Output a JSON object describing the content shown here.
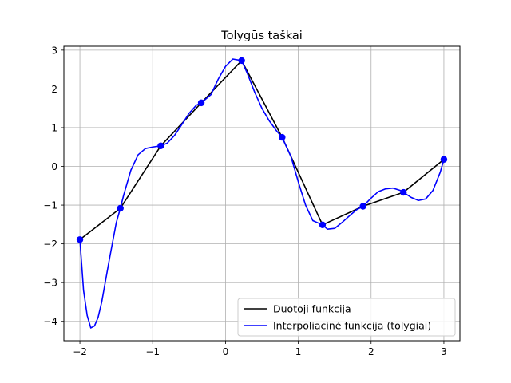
{
  "chart_data": {
    "type": "line",
    "title": "Tolygūs taškai",
    "xlabel": "",
    "ylabel": "",
    "xlim": [
      -2.22,
      3.22
    ],
    "ylim": [
      -4.5,
      3.1
    ],
    "xticks": [
      -2,
      -1,
      0,
      1,
      2,
      3
    ],
    "xtick_labels": [
      "−2",
      "−1",
      "0",
      "1",
      "2",
      "3"
    ],
    "yticks": [
      -4,
      -3,
      -2,
      -1,
      0,
      1,
      2,
      3
    ],
    "ytick_labels": [
      "−4",
      "−3",
      "−2",
      "−1",
      "0",
      "1",
      "2",
      "3"
    ],
    "grid": true,
    "legend_position": "lower-right",
    "series": [
      {
        "name": "Duotoji funkcija",
        "color": "#000000",
        "x": [
          -2.0,
          -1.444,
          -0.889,
          -0.333,
          0.222,
          0.778,
          1.333,
          1.889,
          2.444,
          3.0
        ],
        "y": [
          -1.89,
          -1.08,
          0.53,
          1.64,
          2.73,
          0.75,
          -1.51,
          -1.03,
          -0.67,
          0.18
        ]
      },
      {
        "name": "Interpoliacinė funkcija (tolygiai)",
        "color": "#0000ff",
        "x": [
          -2.0,
          -1.95,
          -1.9,
          -1.85,
          -1.8,
          -1.75,
          -1.7,
          -1.6,
          -1.5,
          -1.444,
          -1.4,
          -1.3,
          -1.2,
          -1.1,
          -1.0,
          -0.889,
          -0.8,
          -0.7,
          -0.6,
          -0.5,
          -0.4,
          -0.333,
          -0.2,
          -0.1,
          0.0,
          0.1,
          0.222,
          0.3,
          0.4,
          0.5,
          0.6,
          0.7,
          0.778,
          0.9,
          1.0,
          1.1,
          1.2,
          1.333,
          1.4,
          1.5,
          1.6,
          1.7,
          1.8,
          1.889,
          2.0,
          2.1,
          2.2,
          2.3,
          2.4,
          2.444,
          2.55,
          2.65,
          2.75,
          2.85,
          2.95,
          3.0
        ],
        "y": [
          -1.89,
          -3.2,
          -3.85,
          -4.17,
          -4.12,
          -3.9,
          -3.5,
          -2.45,
          -1.45,
          -1.08,
          -0.75,
          -0.1,
          0.3,
          0.46,
          0.5,
          0.53,
          0.6,
          0.8,
          1.08,
          1.37,
          1.58,
          1.64,
          1.85,
          2.25,
          2.58,
          2.77,
          2.73,
          2.4,
          1.92,
          1.5,
          1.18,
          0.92,
          0.75,
          0.25,
          -0.4,
          -1.0,
          -1.4,
          -1.51,
          -1.62,
          -1.6,
          -1.45,
          -1.28,
          -1.12,
          -1.03,
          -0.82,
          -0.65,
          -0.58,
          -0.56,
          -0.62,
          -0.67,
          -0.8,
          -0.88,
          -0.84,
          -0.62,
          -0.15,
          0.18
        ]
      }
    ],
    "markers": {
      "color": "#0000ff",
      "x": [
        -2.0,
        -1.444,
        -0.889,
        -0.333,
        0.222,
        0.778,
        1.333,
        1.889,
        2.444,
        3.0
      ],
      "y": [
        -1.89,
        -1.08,
        0.53,
        1.64,
        2.73,
        0.75,
        -1.51,
        -1.03,
        -0.67,
        0.18
      ]
    }
  }
}
